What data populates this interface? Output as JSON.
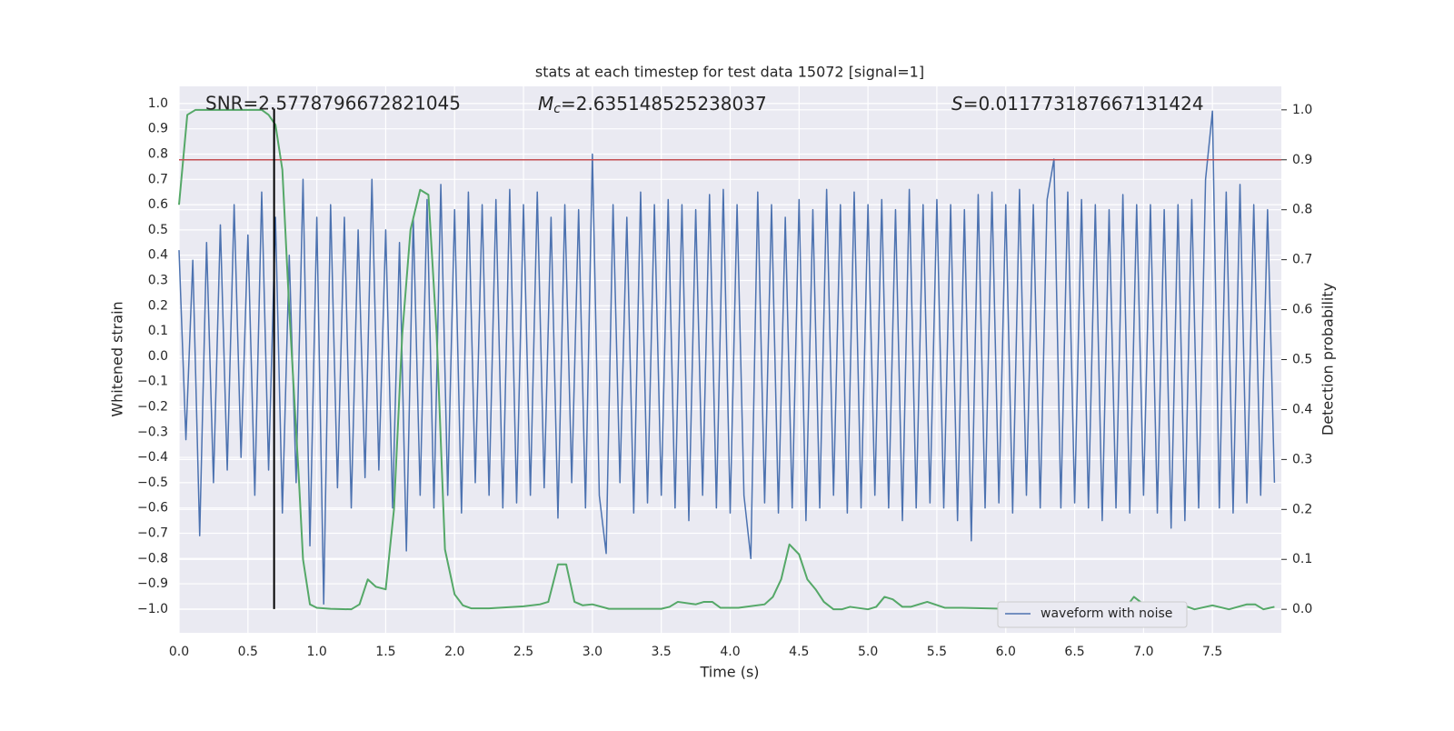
{
  "chart_data": {
    "type": "line",
    "title": "stats at each timestep for test data 15072 [signal=1]",
    "xlabel": "Time (s)",
    "ylabel": "Whitened strain",
    "y2label": "Detection probability",
    "annotations": {
      "snr": "SNR=2.5778796672821045",
      "mc": {
        "symbol": "M",
        "subscript": "c",
        "text": "=2.635148525238037"
      },
      "s": {
        "symbol": "S",
        "text": "=0.011773187667131424"
      }
    },
    "xlim": [
      0,
      8
    ],
    "ylim": [
      -1.094,
      1.068
    ],
    "y2lim": [
      -0.047,
      1.047
    ],
    "xticks": [
      {
        "value": 0,
        "label": "0.0"
      },
      0.5,
      {
        "value": 1,
        "label": "1.0"
      },
      1.5,
      {
        "value": 2,
        "label": "2.0"
      },
      2.5,
      {
        "value": 3,
        "label": "3.0"
      },
      3.5,
      {
        "value": 4,
        "label": "4.0"
      },
      4.5,
      {
        "value": 5,
        "label": "5.0"
      },
      5.5,
      {
        "value": 6,
        "label": "6.0"
      },
      6.5,
      {
        "value": 7,
        "label": "7.0"
      },
      7.5
    ],
    "yticks": [
      {
        "value": -1,
        "label": "−1.0"
      },
      {
        "value": -0.9,
        "label": "−0.9"
      },
      {
        "value": -0.8,
        "label": "−0.8"
      },
      {
        "value": -0.7,
        "label": "−0.7"
      },
      {
        "value": -0.6,
        "label": "−0.6"
      },
      {
        "value": -0.5,
        "label": "−0.5"
      },
      {
        "value": -0.4,
        "label": "−0.4"
      },
      {
        "value": -0.3,
        "label": "−0.3"
      },
      {
        "value": -0.2,
        "label": "−0.2"
      },
      {
        "value": -0.1,
        "label": "−0.1"
      },
      {
        "value": 0,
        "label": "0.0"
      },
      0.1,
      0.2,
      0.3,
      0.4,
      0.5,
      0.6,
      0.7,
      0.8,
      0.9,
      {
        "value": 1,
        "label": "1.0"
      }
    ],
    "y2ticks": [
      {
        "value": 0,
        "label": "0.0"
      },
      0.1,
      0.2,
      0.3,
      0.4,
      0.5,
      0.6,
      0.7,
      0.8,
      0.9,
      {
        "value": 1,
        "label": "1.0"
      }
    ],
    "grid": true,
    "legend": "lower right",
    "hline": {
      "y": 0.9,
      "axis": "y2",
      "color": "#c44e52"
    },
    "vline": {
      "x": 0.69,
      "ymin": -1.0,
      "ymax": 0.98,
      "color": "#000000"
    },
    "series": [
      {
        "name": "waveform with noise",
        "color": "#4c72b0",
        "x": [
          0,
          0.05,
          0.1,
          0.15,
          0.2,
          0.25,
          0.3,
          0.35,
          0.4,
          0.45,
          0.5,
          0.55,
          0.6,
          0.65,
          0.7,
          0.75,
          0.8,
          0.85,
          0.9,
          0.95,
          1,
          1.05,
          1.1,
          1.15,
          1.2,
          1.25,
          1.3,
          1.35,
          1.4,
          1.45,
          1.5,
          1.55,
          1.6,
          1.65,
          1.7,
          1.75,
          1.8,
          1.85,
          1.9,
          1.95,
          2,
          2.05,
          2.1,
          2.15,
          2.2,
          2.25,
          2.3,
          2.35,
          2.4,
          2.45,
          2.5,
          2.55,
          2.6,
          2.65,
          2.7,
          2.75,
          2.8,
          2.85,
          2.9,
          2.95,
          3,
          3.05,
          3.1,
          3.15,
          3.2,
          3.25,
          3.3,
          3.35,
          3.4,
          3.45,
          3.5,
          3.55,
          3.6,
          3.65,
          3.7,
          3.75,
          3.8,
          3.85,
          3.9,
          3.95,
          4,
          4.05,
          4.1,
          4.15,
          4.2,
          4.25,
          4.3,
          4.35,
          4.4,
          4.45,
          4.5,
          4.55,
          4.6,
          4.65,
          4.7,
          4.75,
          4.8,
          4.85,
          4.9,
          4.95,
          5,
          5.05,
          5.1,
          5.15,
          5.2,
          5.25,
          5.3,
          5.35,
          5.4,
          5.45,
          5.5,
          5.55,
          5.6,
          5.65,
          5.7,
          5.75,
          5.8,
          5.85,
          5.9,
          5.95,
          6,
          6.05,
          6.1,
          6.15,
          6.2,
          6.25,
          6.3,
          6.35,
          6.4,
          6.45,
          6.5,
          6.55,
          6.6,
          6.65,
          6.7,
          6.75,
          6.8,
          6.85,
          6.9,
          6.95,
          7,
          7.05,
          7.1,
          7.15,
          7.2,
          7.25,
          7.3,
          7.35,
          7.4,
          7.45,
          7.5,
          7.55,
          7.6,
          7.65,
          7.7,
          7.75,
          7.8,
          7.85,
          7.9,
          7.95
        ],
        "values": [
          0.42,
          -0.33,
          0.38,
          -0.71,
          0.45,
          -0.5,
          0.52,
          -0.45,
          0.6,
          -0.4,
          0.48,
          -0.55,
          0.65,
          -0.45,
          0.55,
          -0.62,
          0.4,
          -0.5,
          0.7,
          -0.75,
          0.55,
          -0.98,
          0.6,
          -0.52,
          0.55,
          -0.6,
          0.5,
          -0.48,
          0.7,
          -0.45,
          0.5,
          -0.6,
          0.45,
          -0.77,
          0.55,
          -0.55,
          0.62,
          -0.6,
          0.68,
          -0.55,
          0.58,
          -0.62,
          0.65,
          -0.5,
          0.6,
          -0.55,
          0.62,
          -0.6,
          0.66,
          -0.58,
          0.6,
          -0.55,
          0.65,
          -0.52,
          0.55,
          -0.64,
          0.6,
          -0.5,
          0.58,
          -0.6,
          0.8,
          -0.55,
          -0.78,
          0.6,
          -0.5,
          0.55,
          -0.62,
          0.65,
          -0.58,
          0.6,
          -0.55,
          0.62,
          -0.6,
          0.6,
          -0.65,
          0.58,
          -0.55,
          0.64,
          -0.6,
          0.66,
          -0.62,
          0.6,
          -0.55,
          -0.8,
          0.65,
          -0.58,
          0.6,
          -0.62,
          0.55,
          -0.6,
          0.62,
          -0.65,
          0.58,
          -0.6,
          0.66,
          -0.55,
          0.6,
          -0.62,
          0.65,
          -0.6,
          0.6,
          -0.55,
          0.62,
          -0.6,
          0.58,
          -0.65,
          0.66,
          -0.6,
          0.6,
          -0.58,
          0.62,
          -0.6,
          0.6,
          -0.65,
          0.58,
          -0.73,
          0.64,
          -0.6,
          0.65,
          -0.58,
          0.6,
          -0.62,
          0.66,
          -0.55,
          0.6,
          -0.6,
          0.62,
          0.78,
          -0.6,
          0.65,
          -0.58,
          0.62,
          -0.6,
          0.6,
          -0.65,
          0.58,
          -0.6,
          0.64,
          -0.62,
          0.6,
          -0.55,
          0.6,
          -0.62,
          0.58,
          -0.68,
          0.6,
          -0.65,
          0.62,
          -0.6,
          0.7,
          0.97,
          -0.6,
          0.65,
          -0.62,
          0.68,
          -0.58,
          0.6,
          -0.55,
          0.58,
          -0.5
        ]
      },
      {
        "color": "#55a868",
        "axis": "y2",
        "x": [
          0,
          0.06,
          0.12,
          0.25,
          0.4,
          0.6,
          0.65,
          0.7,
          0.75,
          0.8,
          0.87,
          0.9,
          0.95,
          1,
          1.1,
          1.25,
          1.31,
          1.37,
          1.43,
          1.5,
          1.56,
          1.62,
          1.68,
          1.75,
          1.81,
          1.87,
          1.93,
          2,
          2.06,
          2.12,
          2.25,
          2.5,
          2.62,
          2.68,
          2.75,
          2.81,
          2.87,
          2.93,
          3,
          3.12,
          3.5,
          3.56,
          3.62,
          3.75,
          3.81,
          3.87,
          3.93,
          4.06,
          4.25,
          4.31,
          4.37,
          4.43,
          4.5,
          4.56,
          4.62,
          4.68,
          4.75,
          4.81,
          4.87,
          5,
          5.06,
          5.12,
          5.18,
          5.25,
          5.31,
          5.43,
          5.56,
          5.68,
          6,
          6.37,
          6.62,
          6.87,
          6.93,
          7,
          7.06,
          7.12,
          7.25,
          7.37,
          7.5,
          7.62,
          7.75,
          7.81,
          7.87,
          7.95
        ],
        "values": [
          0.81,
          0.99,
          1,
          1,
          1,
          1,
          0.99,
          0.97,
          0.88,
          0.6,
          0.26,
          0.1,
          0.01,
          0.003,
          0.001,
          0,
          0.01,
          0.06,
          0.045,
          0.04,
          0.2,
          0.55,
          0.76,
          0.84,
          0.83,
          0.55,
          0.12,
          0.03,
          0.008,
          0.002,
          0.002,
          0.006,
          0.01,
          0.015,
          0.09,
          0.09,
          0.015,
          0.008,
          0.01,
          0.001,
          0.001,
          0.005,
          0.015,
          0.01,
          0.015,
          0.015,
          0.003,
          0.003,
          0.01,
          0.025,
          0.06,
          0.13,
          0.11,
          0.06,
          0.04,
          0.015,
          0,
          0,
          0.005,
          0,
          0.005,
          0.025,
          0.02,
          0.005,
          0.005,
          0.015,
          0.003,
          0.003,
          0.001,
          0.003,
          0,
          0.003,
          0.025,
          0.01,
          0,
          0,
          0.012,
          0,
          0.008,
          0,
          0.01,
          0.01,
          0,
          0.005
        ]
      }
    ]
  }
}
